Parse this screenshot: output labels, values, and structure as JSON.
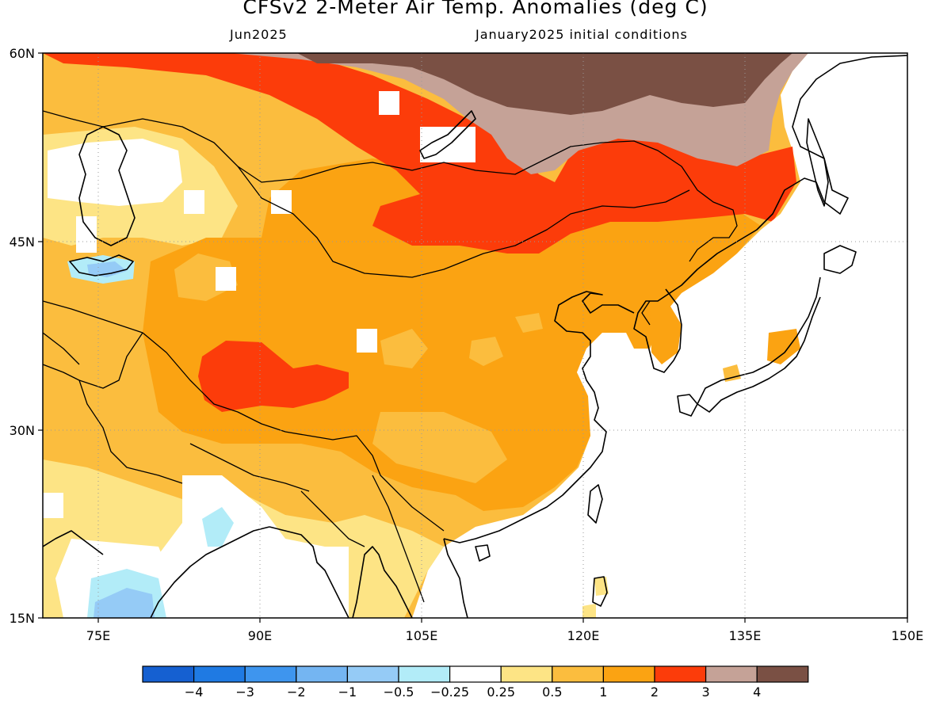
{
  "header": {
    "title": "CFSv2 2-Meter Air Temp. Anomalies (deg C)",
    "valid_month": "Jun2025",
    "initial_conditions": "January2025 initial conditions"
  },
  "map": {
    "lat_labels": [
      "60N",
      "45N",
      "30N",
      "15N"
    ],
    "lon_labels": [
      "75E",
      "90E",
      "105E",
      "120E",
      "135E",
      "150E"
    ]
  },
  "colorbar": {
    "colors": [
      "#1560d1",
      "#1f7ae3",
      "#3e95ee",
      "#74b5f2",
      "#95cbf6",
      "#b2ecf8",
      "#ffffff",
      "#fde485",
      "#fbbd3e",
      "#fba312",
      "#fc3c0a",
      "#c5a297",
      "#7a5044"
    ],
    "tick_labels": [
      "−4",
      "−3",
      "−2",
      "−1",
      "−0.5",
      "−0.25",
      "0.25",
      "0.5",
      "1",
      "2",
      "3",
      "4"
    ]
  }
}
